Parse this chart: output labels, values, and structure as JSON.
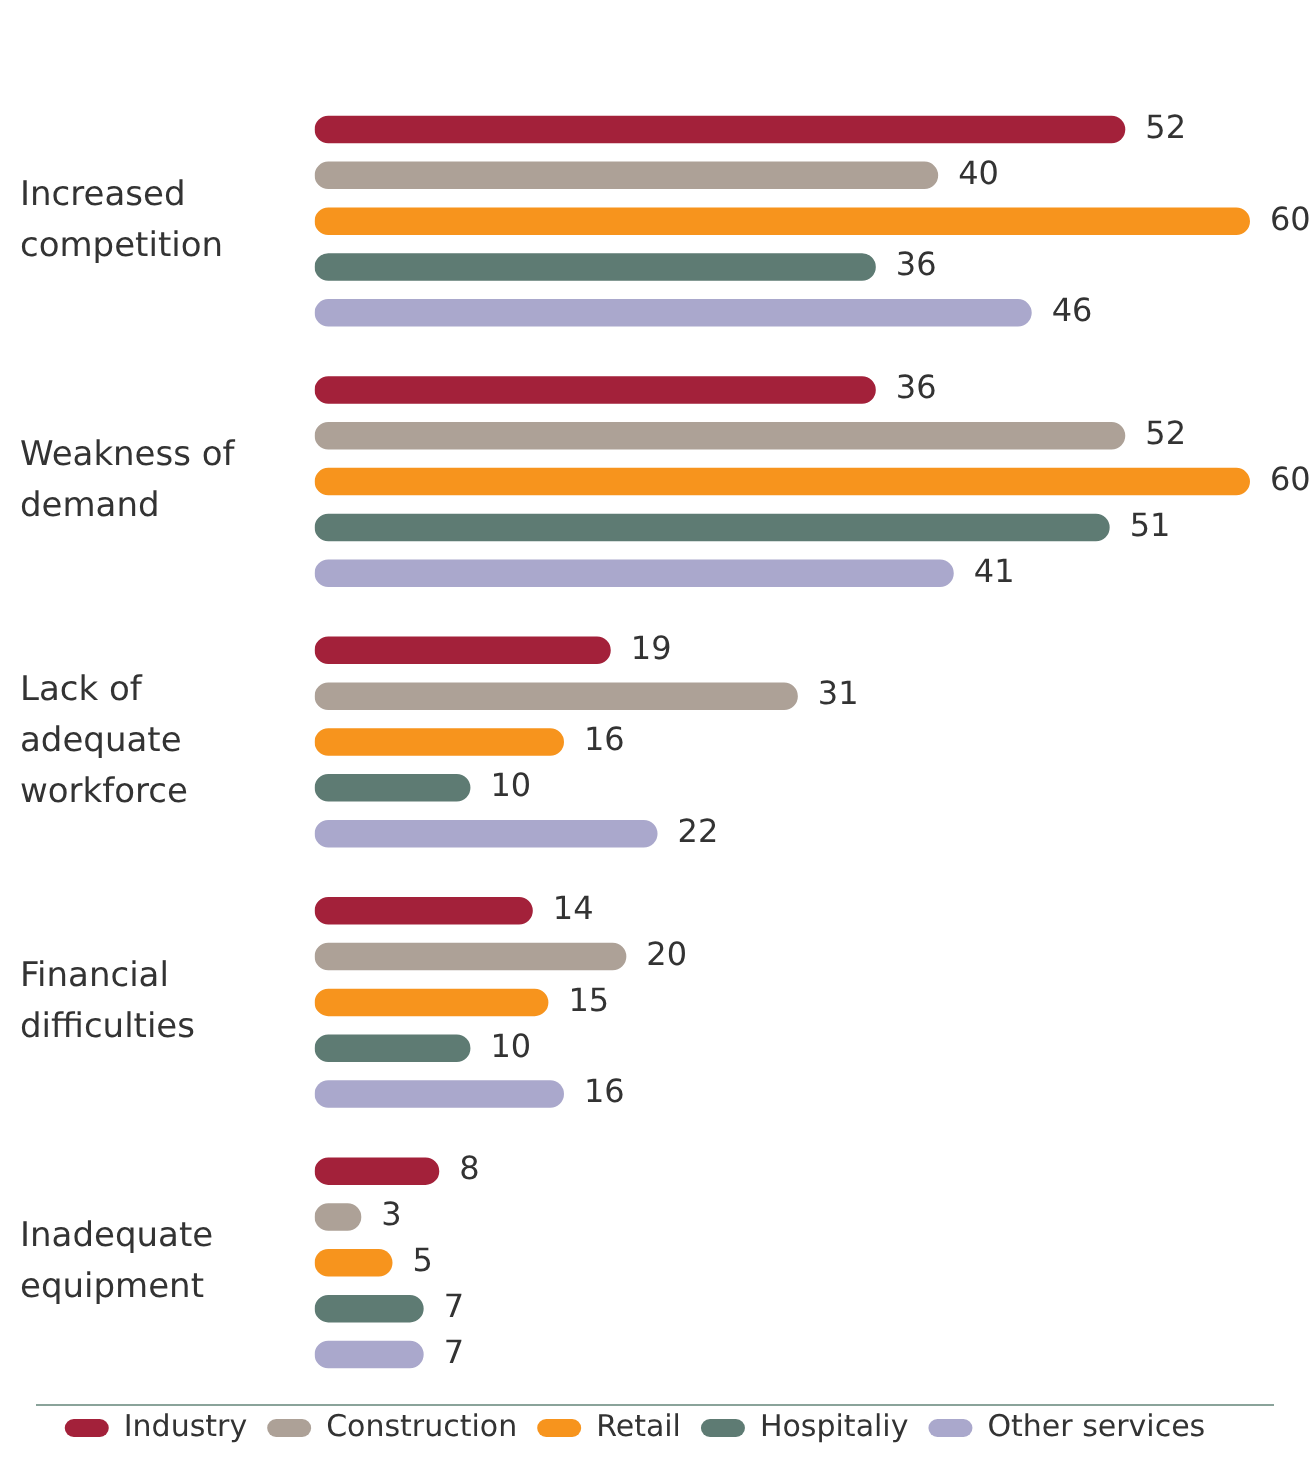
{
  "chart_data": {
    "type": "bar",
    "orientation": "horizontal",
    "categories": [
      "Increased competition",
      "Weakness of demand",
      "Lack of adequate workforce",
      "Financial difficulties",
      "Inadequate equipment"
    ],
    "series": [
      {
        "name": "Industry",
        "color": "#a3213a",
        "values": [
          52,
          36,
          19,
          14,
          8
        ]
      },
      {
        "name": "Construction",
        "color": "#ada197",
        "values": [
          40,
          52,
          31,
          20,
          3
        ]
      },
      {
        "name": "Retail",
        "color": "#f7941d",
        "values": [
          60,
          60,
          16,
          15,
          5
        ]
      },
      {
        "name": "Hospitaliy",
        "color": "#5e7b73",
        "values": [
          36,
          51,
          10,
          10,
          7
        ]
      },
      {
        "name": "Other services",
        "color": "#aaa8cc",
        "values": [
          46,
          41,
          22,
          16,
          7
        ]
      }
    ],
    "data_labels": true,
    "legend": "bottom",
    "grid": false
  }
}
